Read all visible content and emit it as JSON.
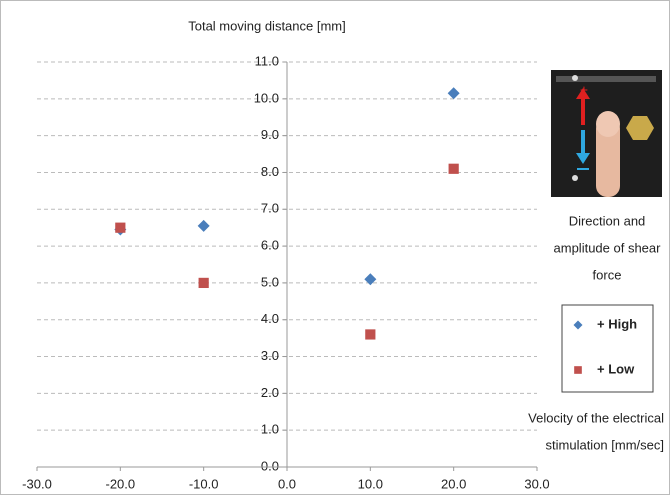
{
  "chart_data": {
    "type": "scatter",
    "title": "Total moving distance [mm]",
    "x_label": [
      "Velocity of the electrical",
      "stimulation [mm/sec]"
    ],
    "annotation": [
      "Direction and",
      "amplitude of shear",
      "force"
    ],
    "series": [
      {
        "name": "+ High",
        "color": "#4a7ebb",
        "marker": "diamond",
        "x": [
          -20,
          -10,
          10,
          20
        ],
        "values": [
          6.45,
          6.55,
          5.1,
          10.15
        ]
      },
      {
        "name": "+ Low",
        "color": "#c0504d",
        "marker": "square",
        "x": [
          -20,
          -10,
          10,
          20
        ],
        "values": [
          6.5,
          5.0,
          3.6,
          8.1
        ]
      }
    ],
    "xlim": [
      -30,
      30
    ],
    "xticks": [
      {
        "value": -30,
        "label": "-30.0"
      },
      {
        "value": -20,
        "label": "-20.0"
      },
      {
        "value": -10,
        "label": "-10.0"
      },
      {
        "value": 0,
        "label": "0.0"
      },
      {
        "value": 10,
        "label": "10.0"
      },
      {
        "value": 20,
        "label": "20.0"
      },
      {
        "value": 30,
        "label": "30.0"
      }
    ],
    "ylim": [
      0,
      11
    ],
    "yticks": [
      {
        "value": 0,
        "label": "0.0"
      },
      {
        "value": 1,
        "label": "1.0"
      },
      {
        "value": 2,
        "label": "2.0"
      },
      {
        "value": 3,
        "label": "3.0"
      },
      {
        "value": 4,
        "label": "4.0"
      },
      {
        "value": 5,
        "label": "5.0"
      },
      {
        "value": 6,
        "label": "6.0"
      },
      {
        "value": 7,
        "label": "7.0"
      },
      {
        "value": 8,
        "label": "8.0"
      },
      {
        "value": 9,
        "label": "9.0"
      },
      {
        "value": 10,
        "label": "10.0"
      },
      {
        "value": 11,
        "label": "11.0"
      }
    ],
    "grid": true
  }
}
